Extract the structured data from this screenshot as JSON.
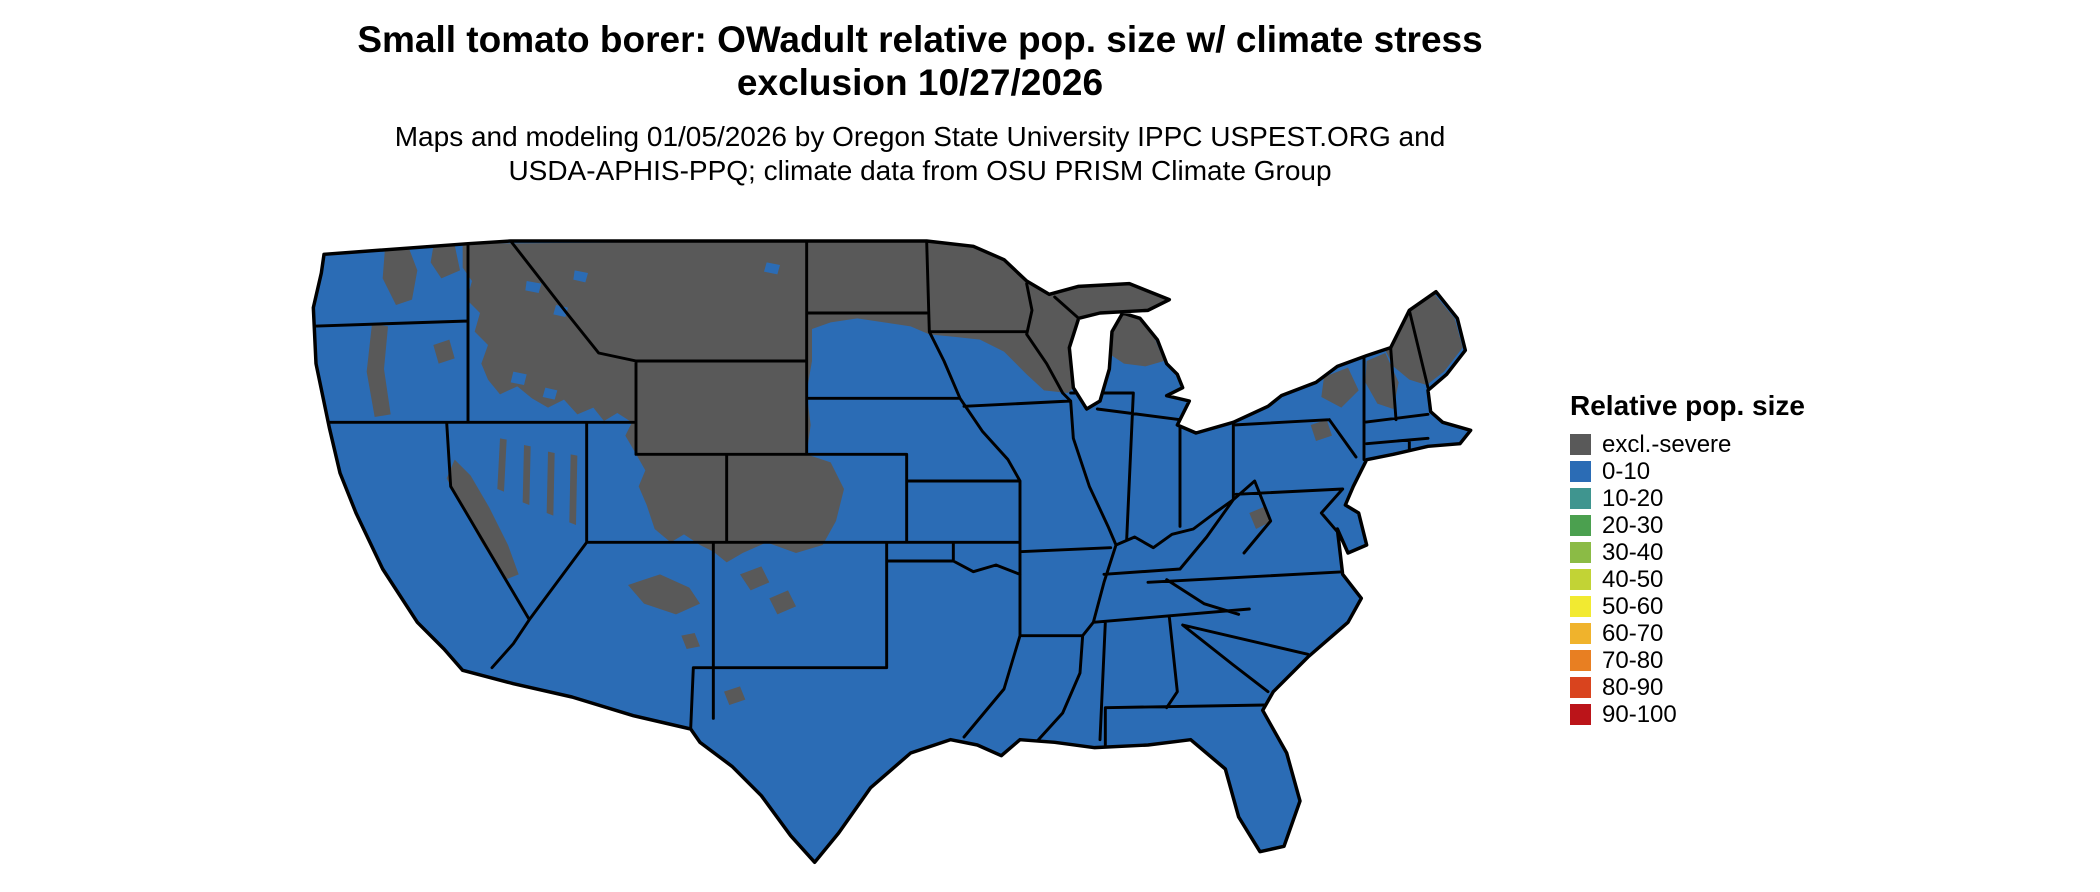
{
  "header": {
    "title_line1": "Small tomato borer: OWadult relative pop. size w/ climate stress",
    "title_line2": "exclusion 10/27/2026",
    "credit_line1": "Maps and modeling 01/05/2026 by Oregon State University IPPC USPEST.ORG and",
    "credit_line2": "USDA-APHIS-PPQ; climate data from OSU PRISM Climate Group"
  },
  "legend": {
    "title": "Relative pop. size",
    "items": [
      {
        "label": "excl.-severe",
        "color": "#595959"
      },
      {
        "label": "0-10",
        "color": "#2b6cb5"
      },
      {
        "label": "10-20",
        "color": "#3f958f"
      },
      {
        "label": "20-30",
        "color": "#4ba04f"
      },
      {
        "label": "30-40",
        "color": "#8bbb45"
      },
      {
        "label": "40-50",
        "color": "#c2d335"
      },
      {
        "label": "50-60",
        "color": "#f2ea31"
      },
      {
        "label": "60-70",
        "color": "#f0b32c"
      },
      {
        "label": "70-80",
        "color": "#e87f22"
      },
      {
        "label": "80-90",
        "color": "#d9441e"
      },
      {
        "label": "90-100",
        "color": "#bb1419"
      }
    ]
  },
  "map": {
    "description": "Continental US relative population size map; blue = 0-10, dark gray = excluded-severe climate stress",
    "colors": {
      "background": "#ffffff",
      "pop_0_10": "#2b6cb5",
      "excluded": "#595959",
      "state_border": "#000000"
    }
  }
}
